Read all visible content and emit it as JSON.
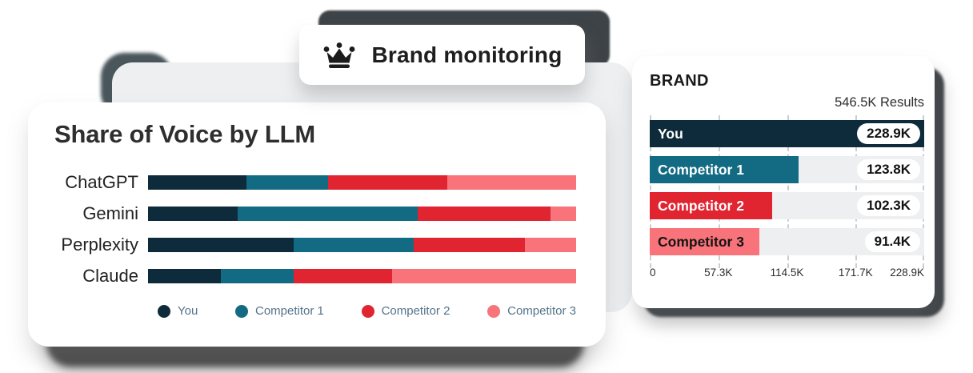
{
  "badge": {
    "label": "Brand monitoring",
    "icon": "crown-icon"
  },
  "left_card": {
    "title": "Share of Voice by LLM"
  },
  "right_card": {
    "title": "BRAND",
    "results_label": "546.5K Results"
  },
  "colors": {
    "you": "#0d2b3a",
    "competitor1": "#136b83",
    "competitor2": "#e02531",
    "competitor3": "#f8737a",
    "track": "#edeff0",
    "backdrop": "#edeff1",
    "shadow_charcoal": "#45484a",
    "legend_text": "#54738a"
  },
  "chart_data": [
    {
      "type": "bar",
      "variant": "horizontal-stacked-100pct",
      "title": "Share of Voice by LLM",
      "categories": [
        "ChatGPT",
        "Gemini",
        "Perplexity",
        "Claude"
      ],
      "series": [
        {
          "name": "You",
          "color": "#0d2b3a",
          "values": [
            23,
            21,
            34,
            17
          ]
        },
        {
          "name": "Competitor 1",
          "color": "#136b83",
          "values": [
            19,
            42,
            28,
            17
          ]
        },
        {
          "name": "Competitor 2",
          "color": "#e02531",
          "values": [
            28,
            31,
            26,
            23
          ]
        },
        {
          "name": "Competitor 3",
          "color": "#f8737a",
          "values": [
            30,
            6,
            12,
            43
          ]
        }
      ],
      "units": "percent of row",
      "legend_position": "bottom",
      "grid": false
    },
    {
      "type": "bar",
      "variant": "horizontal",
      "title": "BRAND",
      "subtitle": "546.5K Results",
      "rows": [
        {
          "label": "You",
          "value": 228900,
          "value_label": "228.9K",
          "percent": 100,
          "color": "#0d2b3a",
          "label_color": "#ffffff"
        },
        {
          "label": "Competitor 1",
          "value": 123800,
          "value_label": "123.8K",
          "percent": 54.1,
          "color": "#136b83",
          "label_color": "#ffffff"
        },
        {
          "label": "Competitor 2",
          "value": 102300,
          "value_label": "102.3K",
          "percent": 44.7,
          "color": "#e02531",
          "label_color": "#ffffff"
        },
        {
          "label": "Competitor 3",
          "value": 91400,
          "value_label": "91.4K",
          "percent": 39.9,
          "color": "#f8737a",
          "label_color": "#141414"
        }
      ],
      "x_ticks": [
        "0",
        "57.3K",
        "114.5K",
        "171.7K",
        "228.9K"
      ],
      "xlim": [
        0,
        228900
      ],
      "grid": "dashed-vertical"
    }
  ]
}
